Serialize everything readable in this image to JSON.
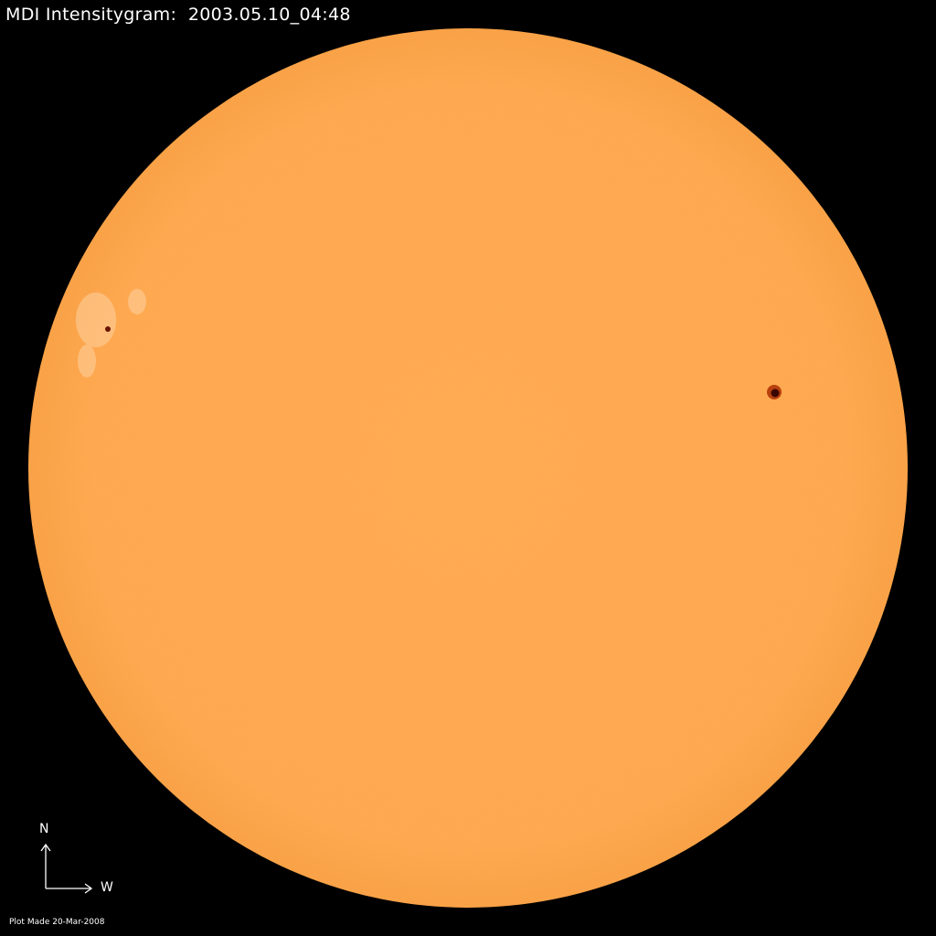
{
  "title": {
    "label": "MDI Intensitygram:",
    "timestamp": "2003.05.10_04:48"
  },
  "orientation": {
    "north_label": "N",
    "west_label": "W"
  },
  "footer": {
    "plot_made": "Plot Made 20-Mar-2008"
  },
  "colors": {
    "background": "#000000",
    "disk": "#FFA94F",
    "limb": "#F59A3C",
    "sunspot_umbra": "#3A0500",
    "sunspot_penumbra": "#B8400E",
    "facula": "#FFD7A6",
    "text": "#FFFFFF"
  }
}
